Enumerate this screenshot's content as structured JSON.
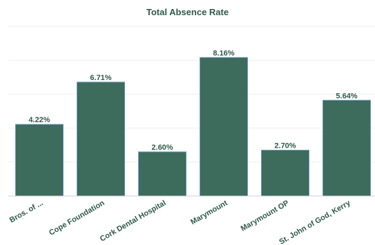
{
  "colors": {
    "bar_fill": "#3d6b5c",
    "bar_stroke": "#6a9ac4",
    "text": "#2e5a4c",
    "grid": "#eeeeee",
    "axis": "#cccccc"
  },
  "chart_data": {
    "type": "bar",
    "title": "Total Absence Rate",
    "xlabel": "",
    "ylabel": "",
    "categories": [
      "Bros. of ...",
      "Cope Foundation",
      "Cork Dental Hospital",
      "Marymount",
      "Marymount OP",
      "St. John of God, Kerry"
    ],
    "values": [
      4.22,
      6.71,
      2.6,
      8.16,
      2.7,
      5.64
    ],
    "data_labels": [
      "4.22%",
      "6.71%",
      "2.60%",
      "8.16%",
      "2.70%",
      "5.64%"
    ],
    "ylim": [
      0,
      10
    ],
    "grid": true,
    "y_ticks_shown": false,
    "legend": "none"
  }
}
